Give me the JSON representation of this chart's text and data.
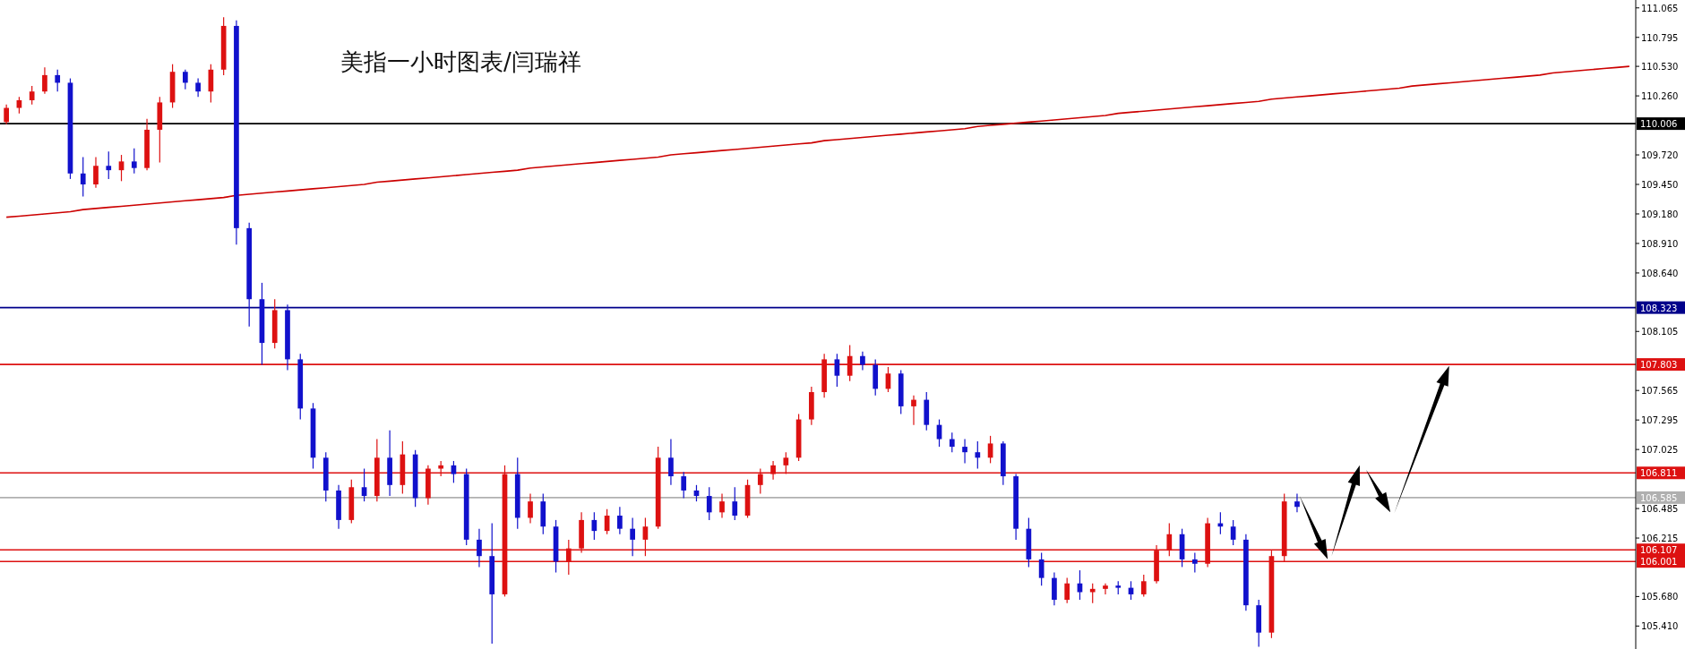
{
  "chart_data": {
    "type": "candlestick",
    "title": "美指一小时图表/闫瑞祥",
    "categories": [
      null,
      null,
      null,
      null,
      null,
      null,
      null,
      null,
      null,
      null,
      null,
      null,
      null,
      null,
      null,
      null,
      null,
      null,
      null,
      null,
      null,
      null,
      null,
      null,
      null,
      null,
      null,
      null,
      null,
      null,
      null,
      null,
      null,
      null,
      null,
      null,
      null,
      null,
      null,
      null,
      null,
      null,
      null,
      null,
      null,
      null,
      null,
      null,
      null,
      null,
      null,
      null,
      null,
      null,
      null,
      null,
      null,
      null,
      null,
      null,
      null,
      null,
      null,
      null,
      null,
      null,
      null,
      null,
      null,
      null,
      null,
      null,
      null,
      null,
      null,
      null,
      null,
      null,
      null,
      null,
      null,
      null,
      null,
      null,
      null,
      null,
      null,
      null,
      null,
      null,
      null,
      null,
      null,
      null,
      null,
      null,
      null,
      null,
      null,
      null,
      null,
      null,
      null,
      null,
      null,
      null,
      null,
      null,
      null,
      null,
      null,
      null,
      null,
      null,
      null,
      null,
      null,
      null,
      null,
      null,
      null,
      null,
      null,
      null,
      null,
      null,
      null,
      null
    ],
    "ohlc": [
      [
        110.02,
        110.18,
        110.0,
        110.15
      ],
      [
        110.15,
        110.25,
        110.1,
        110.22
      ],
      [
        110.22,
        110.35,
        110.18,
        110.3
      ],
      [
        110.3,
        110.52,
        110.28,
        110.45
      ],
      [
        110.45,
        110.5,
        110.3,
        110.38
      ],
      [
        110.38,
        110.42,
        109.5,
        109.55
      ],
      [
        109.55,
        109.7,
        109.34,
        109.45
      ],
      [
        109.45,
        109.7,
        109.42,
        109.62
      ],
      [
        109.62,
        109.75,
        109.5,
        109.58
      ],
      [
        109.58,
        109.72,
        109.48,
        109.66
      ],
      [
        109.66,
        109.78,
        109.55,
        109.6
      ],
      [
        109.6,
        110.05,
        109.58,
        109.95
      ],
      [
        109.95,
        110.25,
        109.65,
        110.2
      ],
      [
        110.2,
        110.55,
        110.15,
        110.48
      ],
      [
        110.48,
        110.5,
        110.32,
        110.38
      ],
      [
        110.38,
        110.42,
        110.25,
        110.3
      ],
      [
        110.3,
        110.55,
        110.2,
        110.5
      ],
      [
        110.5,
        110.98,
        110.45,
        110.9
      ],
      [
        110.9,
        110.95,
        108.9,
        109.05
      ],
      [
        109.05,
        109.1,
        108.15,
        108.4
      ],
      [
        108.4,
        108.55,
        107.8,
        108.0
      ],
      [
        108.0,
        108.4,
        107.95,
        108.3
      ],
      [
        108.3,
        108.35,
        107.75,
        107.85
      ],
      [
        107.85,
        107.9,
        107.3,
        107.4
      ],
      [
        107.4,
        107.45,
        106.85,
        106.95
      ],
      [
        106.95,
        107.0,
        106.55,
        106.65
      ],
      [
        106.65,
        106.7,
        106.3,
        106.38
      ],
      [
        106.38,
        106.75,
        106.35,
        106.68
      ],
      [
        106.68,
        106.85,
        106.55,
        106.6
      ],
      [
        106.6,
        107.12,
        106.55,
        106.95
      ],
      [
        106.95,
        107.2,
        106.6,
        106.7
      ],
      [
        106.7,
        107.1,
        106.62,
        106.98
      ],
      [
        106.98,
        107.02,
        106.5,
        106.58
      ],
      [
        106.58,
        106.88,
        106.52,
        106.85
      ],
      [
        106.85,
        106.92,
        106.78,
        106.88
      ],
      [
        106.88,
        106.92,
        106.72,
        106.8
      ],
      [
        106.8,
        106.85,
        106.15,
        106.2
      ],
      [
        106.2,
        106.3,
        105.95,
        106.05
      ],
      [
        106.05,
        106.35,
        105.25,
        105.7
      ],
      [
        105.7,
        106.88,
        105.68,
        106.8
      ],
      [
        106.8,
        106.95,
        106.3,
        106.4
      ],
      [
        106.4,
        106.62,
        106.35,
        106.55
      ],
      [
        106.55,
        106.62,
        106.25,
        106.32
      ],
      [
        106.32,
        106.38,
        105.9,
        106.0
      ],
      [
        106.0,
        106.2,
        105.88,
        106.12
      ],
      [
        106.12,
        106.45,
        106.08,
        106.38
      ],
      [
        106.38,
        106.45,
        106.2,
        106.28
      ],
      [
        106.28,
        106.48,
        106.25,
        106.42
      ],
      [
        106.42,
        106.5,
        106.25,
        106.3
      ],
      [
        106.3,
        106.4,
        106.05,
        106.2
      ],
      [
        106.2,
        106.4,
        106.05,
        106.32
      ],
      [
        106.32,
        107.05,
        106.3,
        106.95
      ],
      [
        106.95,
        107.12,
        106.7,
        106.78
      ],
      [
        106.78,
        106.82,
        106.58,
        106.65
      ],
      [
        106.65,
        106.7,
        106.55,
        106.6
      ],
      [
        106.6,
        106.68,
        106.38,
        106.45
      ],
      [
        106.45,
        106.62,
        106.4,
        106.55
      ],
      [
        106.55,
        106.68,
        106.38,
        106.42
      ],
      [
        106.42,
        106.75,
        106.4,
        106.7
      ],
      [
        106.7,
        106.85,
        106.62,
        106.8
      ],
      [
        106.8,
        106.92,
        106.75,
        106.88
      ],
      [
        106.88,
        107.0,
        106.8,
        106.95
      ],
      [
        106.95,
        107.35,
        106.92,
        107.3
      ],
      [
        107.3,
        107.6,
        107.25,
        107.55
      ],
      [
        107.55,
        107.9,
        107.5,
        107.85
      ],
      [
        107.85,
        107.9,
        107.6,
        107.7
      ],
      [
        107.7,
        107.98,
        107.65,
        107.88
      ],
      [
        107.88,
        107.92,
        107.75,
        107.8
      ],
      [
        107.8,
        107.85,
        107.52,
        107.58
      ],
      [
        107.58,
        107.78,
        107.55,
        107.72
      ],
      [
        107.72,
        107.75,
        107.35,
        107.42
      ],
      [
        107.42,
        107.52,
        107.25,
        107.48
      ],
      [
        107.48,
        107.55,
        107.2,
        107.25
      ],
      [
        107.25,
        107.3,
        107.05,
        107.12
      ],
      [
        107.12,
        107.18,
        107.0,
        107.05
      ],
      [
        107.05,
        107.12,
        106.9,
        107.0
      ],
      [
        107.0,
        107.1,
        106.85,
        106.95
      ],
      [
        106.95,
        107.15,
        106.9,
        107.08
      ],
      [
        107.08,
        107.1,
        106.7,
        106.78
      ],
      [
        106.78,
        106.8,
        106.2,
        106.3
      ],
      [
        106.3,
        106.4,
        105.95,
        106.02
      ],
      [
        106.02,
        106.08,
        105.78,
        105.85
      ],
      [
        105.85,
        105.9,
        105.6,
        105.65
      ],
      [
        105.65,
        105.85,
        105.62,
        105.8
      ],
      [
        105.8,
        105.92,
        105.65,
        105.72
      ],
      [
        105.72,
        105.8,
        105.62,
        105.75
      ],
      [
        105.75,
        105.8,
        105.7,
        105.78
      ],
      [
        105.78,
        105.82,
        105.7,
        105.76
      ],
      [
        105.76,
        105.82,
        105.65,
        105.7
      ],
      [
        105.7,
        105.88,
        105.68,
        105.82
      ],
      [
        105.82,
        106.15,
        105.8,
        106.1
      ],
      [
        106.1,
        106.35,
        106.05,
        106.25
      ],
      [
        106.25,
        106.3,
        105.95,
        106.02
      ],
      [
        106.02,
        106.08,
        105.9,
        105.98
      ],
      [
        105.98,
        106.4,
        105.95,
        106.35
      ],
      [
        106.35,
        106.45,
        106.25,
        106.32
      ],
      [
        106.32,
        106.38,
        106.15,
        106.2
      ],
      [
        106.2,
        106.25,
        105.55,
        105.6
      ],
      [
        105.6,
        105.65,
        105.22,
        105.35
      ],
      [
        105.35,
        106.1,
        105.3,
        106.05
      ],
      [
        106.05,
        106.62,
        106.0,
        106.55
      ],
      [
        106.55,
        106.62,
        106.45,
        106.5
      ],
      null,
      null,
      null,
      null,
      null,
      null,
      null,
      null,
      null,
      null,
      null,
      null,
      null,
      null,
      null,
      null,
      null,
      null,
      null,
      null,
      null,
      null,
      null,
      null,
      null,
      null
    ],
    "series": [
      {
        "type": "line",
        "color": "#cc0000",
        "values": [
          109.15,
          109.16,
          109.17,
          109.18,
          109.19,
          109.2,
          109.22,
          109.23,
          109.24,
          109.25,
          109.26,
          109.27,
          109.28,
          109.29,
          109.3,
          109.31,
          109.32,
          109.33,
          109.35,
          109.36,
          109.37,
          109.38,
          109.39,
          109.4,
          109.41,
          109.42,
          109.43,
          109.44,
          109.45,
          109.47,
          109.48,
          109.49,
          109.5,
          109.51,
          109.52,
          109.53,
          109.54,
          109.55,
          109.56,
          109.57,
          109.58,
          109.6,
          109.61,
          109.62,
          109.63,
          109.64,
          109.65,
          109.66,
          109.67,
          109.68,
          109.69,
          109.7,
          109.72,
          109.73,
          109.74,
          109.75,
          109.76,
          109.77,
          109.78,
          109.79,
          109.8,
          109.81,
          109.82,
          109.83,
          109.85,
          109.86,
          109.87,
          109.88,
          109.89,
          109.9,
          109.91,
          109.92,
          109.93,
          109.94,
          109.95,
          109.96,
          109.98,
          109.99,
          110.0,
          110.01,
          110.02,
          110.03,
          110.04,
          110.05,
          110.06,
          110.07,
          110.08,
          110.1,
          110.11,
          110.12,
          110.13,
          110.14,
          110.15,
          110.16,
          110.17,
          110.18,
          110.19,
          110.2,
          110.21,
          110.23,
          110.24,
          110.25,
          110.26,
          110.27,
          110.28,
          110.29,
          110.3,
          110.31,
          110.32,
          110.33,
          110.35,
          110.36,
          110.37,
          110.38,
          110.39,
          110.4,
          110.41,
          110.42,
          110.43,
          110.44,
          110.45,
          110.47,
          110.48,
          110.49,
          110.5,
          110.51,
          110.52,
          110.53
        ]
      }
    ],
    "ylim": [
      105.2,
      111.137
    ],
    "yticks": [
      111.065,
      110.795,
      {
        "value": 110.53,
        "label": "110.530"
      },
      {
        "value": 110.26,
        "label": "110.260"
      },
      {
        "value": 109.72,
        "label": "109.720"
      },
      {
        "value": 109.45,
        "label": "109.450"
      },
      {
        "value": 109.18,
        "label": "109.180"
      },
      {
        "value": 108.91,
        "label": "108.910"
      },
      {
        "value": 108.64,
        "label": "108.640"
      },
      108.105,
      107.565,
      107.295,
      107.025,
      106.485,
      106.215,
      {
        "value": 105.68,
        "label": "105.680"
      },
      {
        "value": 105.41,
        "label": "105.410"
      }
    ],
    "tick_labels": "y",
    "ref_lines": [
      {
        "axis": "y",
        "value": 110.006,
        "label": "110.006",
        "color": "#000000"
      },
      {
        "axis": "y",
        "value": 108.323,
        "label": "108.323",
        "color": "#00008b"
      },
      {
        "axis": "y",
        "value": 107.803,
        "label": "107.803",
        "color": "#dd1111"
      },
      {
        "axis": "y",
        "value": 106.811,
        "label": "106.811",
        "color": "#dd1111"
      },
      {
        "axis": "y",
        "value": 106.585,
        "label": "106.585",
        "color": "#b0b0b0"
      },
      {
        "axis": "y",
        "value": 106.107,
        "label": "106.107",
        "color": "#dd1111"
      },
      {
        "axis": "y",
        "value": 106.001,
        "label": "106.001",
        "color": "#dd1111"
      }
    ]
  }
}
